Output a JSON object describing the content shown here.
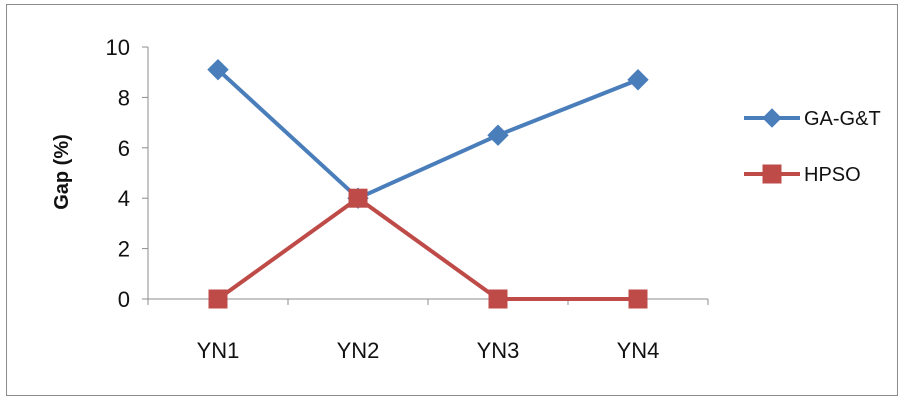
{
  "chart_data": {
    "type": "line",
    "title": "",
    "xlabel": "",
    "ylabel": "Gap (%)",
    "categories": [
      "YN1",
      "YN2",
      "YN3",
      "YN4"
    ],
    "ylim": [
      0,
      10
    ],
    "yticks": [
      0,
      2,
      4,
      6,
      8,
      10
    ],
    "grid": false,
    "legend_position": "right",
    "series": [
      {
        "name": "GA-G&T",
        "values": [
          9.1,
          4.0,
          6.5,
          8.7
        ],
        "color": "#4a7ebb",
        "marker": "diamond"
      },
      {
        "name": "HPSO",
        "values": [
          0.0,
          4.0,
          0.0,
          0.0
        ],
        "color": "#be4b48",
        "marker": "square"
      }
    ]
  }
}
